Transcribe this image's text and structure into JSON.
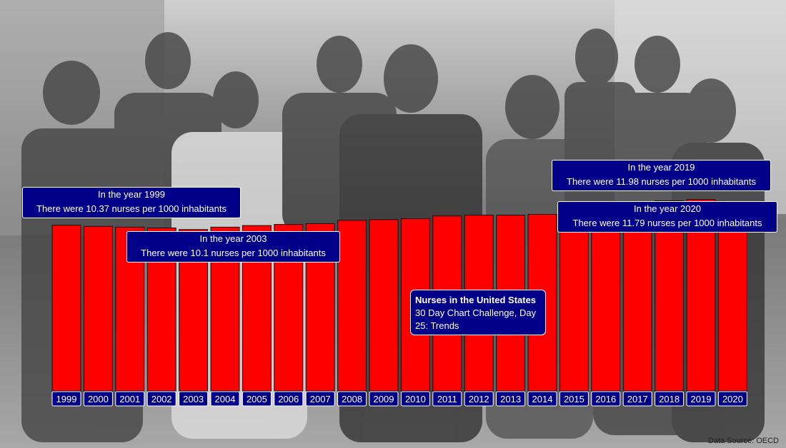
{
  "title": {
    "bold": "Nurses in the United States",
    "rest": " 30 Day Chart Challenge, Day 25: Trends"
  },
  "source": "Data Source: OECD",
  "background": "photo-of-nurses-group",
  "callouts": [
    {
      "line1": "In the year 1999",
      "line2": "There were 10.37 nurses per 1000 inhabitants"
    },
    {
      "line1": "In the year 2003",
      "line2": "There were 10.1 nurses per 1000 inhabitants"
    },
    {
      "line1": "In the year 2019",
      "line2": "There were 11.98 nurses per 1000 inhabitants"
    },
    {
      "line1": "In the year 2020",
      "line2": "There were 11.79 nurses per 1000 inhabitants"
    }
  ],
  "colors": {
    "bar": "#ff0000",
    "label_box": "#000088",
    "label_text": "#ffffff"
  },
  "chart_data": {
    "type": "bar",
    "title": "Nurses in the United States 30 Day Chart Challenge, Day 25: Trends",
    "categories": [
      "1999",
      "2000",
      "2001",
      "2002",
      "2003",
      "2004",
      "2005",
      "2006",
      "2007",
      "2008",
      "2009",
      "2010",
      "2011",
      "2012",
      "2013",
      "2014",
      "2015",
      "2016",
      "2017",
      "2018",
      "2019",
      "2020"
    ],
    "values": [
      10.37,
      10.3,
      10.25,
      10.2,
      10.1,
      10.25,
      10.35,
      10.42,
      10.47,
      10.68,
      10.72,
      10.78,
      10.95,
      11.0,
      11.0,
      11.05,
      11.22,
      11.4,
      11.5,
      11.9,
      11.98,
      11.79
    ],
    "ylim": [
      0,
      12.5
    ],
    "grid": false,
    "legend": "none"
  }
}
